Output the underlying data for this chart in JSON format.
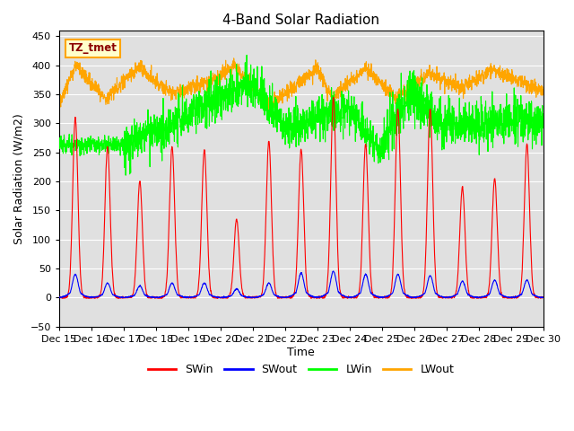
{
  "title": "4-Band Solar Radiation",
  "xlabel": "Time",
  "ylabel": "Solar Radiation (W/m2)",
  "ylim": [
    -50,
    460
  ],
  "xlim": [
    0,
    15
  ],
  "bg_color": "#e0e0e0",
  "legend_labels": [
    "SWin",
    "SWout",
    "LWin",
    "LWout"
  ],
  "legend_colors": [
    "red",
    "blue",
    "green",
    "orange"
  ],
  "annotation_text": "TZ_tmet",
  "annotation_bg": "#ffffcc",
  "annotation_border": "orange",
  "yticks": [
    -50,
    0,
    50,
    100,
    150,
    200,
    250,
    300,
    350,
    400,
    450
  ],
  "xtick_labels": [
    "Dec 15",
    "Dec 16",
    "Dec 17",
    "Dec 18",
    "Dec 19",
    "Dec 20",
    "Dec 21",
    "Dec 22",
    "Dec 23",
    "Dec 24",
    "Dec 25",
    "Dec 26",
    "Dec 27",
    "Dec 28",
    "Dec 29",
    "Dec 30"
  ],
  "n_days": 15,
  "pts_per_day": 144,
  "peaks_swin": [
    310,
    260,
    200,
    260,
    255,
    135,
    270,
    255,
    345,
    265,
    325,
    325,
    190,
    205,
    265
  ],
  "peaks_swout": [
    40,
    25,
    20,
    25,
    25,
    15,
    25,
    42,
    45,
    40,
    40,
    38,
    28,
    30,
    30
  ]
}
